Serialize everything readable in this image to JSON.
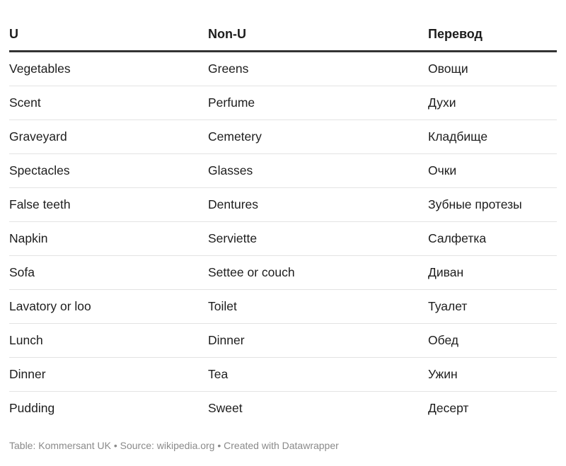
{
  "table": {
    "headers": [
      "U",
      "Non-U",
      "Перевод"
    ],
    "rows": [
      [
        "Vegetables",
        "Greens",
        "Овощи"
      ],
      [
        "Scent",
        "Perfume",
        "Духи"
      ],
      [
        "Graveyard",
        "Cemetery",
        "Кладбище"
      ],
      [
        "Spectacles",
        "Glasses",
        "Очки"
      ],
      [
        "False teeth",
        "Dentures",
        "Зубные протезы"
      ],
      [
        "Napkin",
        "Serviette",
        "Салфетка"
      ],
      [
        "Sofa",
        "Settee or couch",
        "Диван"
      ],
      [
        "Lavatory or loo",
        "Toilet",
        "Туалет"
      ],
      [
        "Lunch",
        "Dinner",
        "Обед"
      ],
      [
        "Dinner",
        "Tea",
        "Ужин"
      ],
      [
        "Pudding",
        "Sweet",
        "Десерт"
      ]
    ]
  },
  "footer": "Table: Kommersant UK • Source: wikipedia.org • Created with Datawrapper",
  "colors": {
    "text": "#1d1d1d",
    "header_rule": "#333333",
    "row_rule": "#e3e3e3",
    "footer_text": "#8a8a8a"
  }
}
